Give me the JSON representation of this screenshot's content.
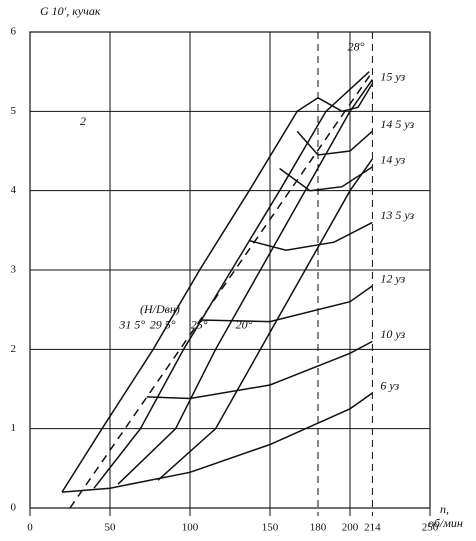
{
  "chart_data": {
    "type": "line",
    "y_label": "G 10', кучак",
    "x_label": "n,",
    "x_unit": "об/мин",
    "panel_label": "2",
    "pitch_note": "(H/Dвн)",
    "xlim": [
      0,
      250
    ],
    "ylim": [
      0,
      6
    ],
    "xticks": [
      0,
      50,
      100,
      150,
      180,
      200,
      214,
      250
    ],
    "yticks": [
      0,
      1,
      2,
      3,
      4,
      5,
      6
    ],
    "grid": true,
    "color": "#111",
    "series": [
      {
        "name": "31 5°",
        "kind": "pitch",
        "x": [
          20,
          45,
          77,
          106,
          137,
          167,
          180
        ],
        "values": [
          0.2,
          1,
          2,
          3,
          4,
          5,
          5.17
        ]
      },
      {
        "name": "29 5°",
        "kind": "pitch",
        "x": [
          40,
          69,
          96,
          126,
          156,
          185,
          212
        ],
        "values": [
          0.25,
          1,
          2,
          3,
          4,
          5,
          5.5
        ]
      },
      {
        "name": "28°",
        "kind": "dashed",
        "x": [
          25,
          214
        ],
        "values": [
          0,
          5.5
        ]
      },
      {
        "name": "25°",
        "kind": "pitch",
        "x": [
          55,
          91,
          116,
          144,
          172,
          200,
          214
        ],
        "values": [
          0.3,
          1,
          2,
          3,
          4,
          5,
          5.4
        ]
      },
      {
        "name": "20°",
        "kind": "pitch",
        "x": [
          80,
          116,
          144,
          172,
          200,
          214
        ],
        "values": [
          0.35,
          1,
          2,
          3,
          4,
          4.4
        ]
      },
      {
        "name": "15 уз",
        "kind": "speed",
        "x": [
          180,
          195,
          205,
          214
        ],
        "values": [
          5.17,
          5.0,
          5.05,
          5.35
        ]
      },
      {
        "name": "14 5 уз",
        "kind": "speed",
        "x": [
          167,
          180,
          200,
          214
        ],
        "values": [
          4.75,
          4.45,
          4.5,
          4.75
        ]
      },
      {
        "name": "14 уз",
        "kind": "speed",
        "x": [
          156,
          175,
          195,
          214
        ],
        "values": [
          4.28,
          4.0,
          4.05,
          4.3
        ]
      },
      {
        "name": "13 5 уз",
        "kind": "speed",
        "x": [
          137,
          160,
          190,
          214
        ],
        "values": [
          3.37,
          3.25,
          3.35,
          3.6
        ]
      },
      {
        "name": "12 уз",
        "kind": "speed",
        "x": [
          106,
          150,
          200,
          214
        ],
        "values": [
          2.37,
          2.35,
          2.6,
          2.8
        ]
      },
      {
        "name": "10 уз",
        "kind": "speed",
        "x": [
          73,
          100,
          150,
          200,
          214
        ],
        "values": [
          1.4,
          1.38,
          1.55,
          1.95,
          2.1
        ]
      },
      {
        "name": "6 уз",
        "kind": "speed",
        "x": [
          20,
          50,
          100,
          150,
          200,
          214
        ],
        "values": [
          0.2,
          0.25,
          0.45,
          0.8,
          1.25,
          1.45
        ]
      }
    ]
  }
}
